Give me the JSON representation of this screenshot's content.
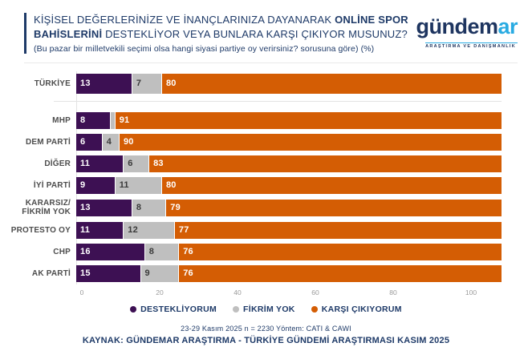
{
  "header": {
    "title_part1": "KİŞİSEL DEĞERLERİNİZE VE İNANÇLARINIZA DAYANARAK ",
    "title_bold": "ONLİNE SPOR BAHİSLERİNİ",
    "title_part2": " DESTEKLİYOR VEYA BUNLARA KARŞI ÇIKIYOR MUSUNUZ?",
    "subtitle": "(Bu pazar bir milletvekili seçimi olsa hangi siyasi partiye oy verirsiniz? sorusuna göre) (%)",
    "accent_color": "#1E3A68"
  },
  "logo": {
    "text_main": "gündem",
    "text_accent": "ar",
    "tagline": "ARAŞTIRMA VE DANIŞMANLIK",
    "main_color": "#1E3560",
    "accent_color": "#29ABE2"
  },
  "chart_data": {
    "type": "bar",
    "orientation": "horizontal-stacked",
    "unit": "%",
    "title": "KİŞİSEL DEĞERLERİNİZE VE İNANÇLARINIZA DAYANARAK ONLİNE SPOR BAHİSLERİNİ DESTEKLİYOR VEYA BUNLARA KARŞI ÇIKIYOR MUSUNUZ?",
    "subtitle": "(Bu pazar bir milletvekili seçimi olsa hangi siyasi partiye oy verirsiniz? sorusuna göre) (%)",
    "categories": [
      "TÜRKİYE",
      "MHP",
      "DEM PARTİ",
      "DİĞER",
      "İYİ PARTİ",
      "KARARSIZ/ FİKRİM YOK",
      "PROTESTO OY",
      "CHP",
      "AK PARTİ"
    ],
    "series": [
      {
        "name": "DESTEKLİYORUM",
        "color": "#3D1053",
        "label_color": "#FFFFFF",
        "values": [
          13,
          8,
          6,
          11,
          9,
          13,
          11,
          16,
          15
        ]
      },
      {
        "name": "FİKRİM YOK",
        "color": "#BFBFBF",
        "label_color": "#3A3A3A",
        "values": [
          7,
          1,
          4,
          6,
          11,
          8,
          12,
          8,
          9
        ]
      },
      {
        "name": "KARŞI ÇIKIYORUM",
        "color": "#D45D04",
        "label_color": "#FFFFFF",
        "values": [
          80,
          91,
          90,
          83,
          80,
          79,
          77,
          76,
          76
        ]
      }
    ],
    "xlim": [
      0,
      100
    ],
    "x_ticks": [
      0,
      20,
      40,
      60,
      80,
      100
    ],
    "value_label_min": 2,
    "group_break_after_index": 0,
    "grid": false,
    "legend_position": "bottom"
  },
  "footer": {
    "methodology": "23-29 Kasım 2025 n = 2230 Yöntem: CATI & CAWI",
    "source": "KAYNAK: GÜNDEMAR ARAŞTIRMA - TÜRKİYE GÜNDEMİ ARAŞTIRMASI KASIM 2025"
  }
}
